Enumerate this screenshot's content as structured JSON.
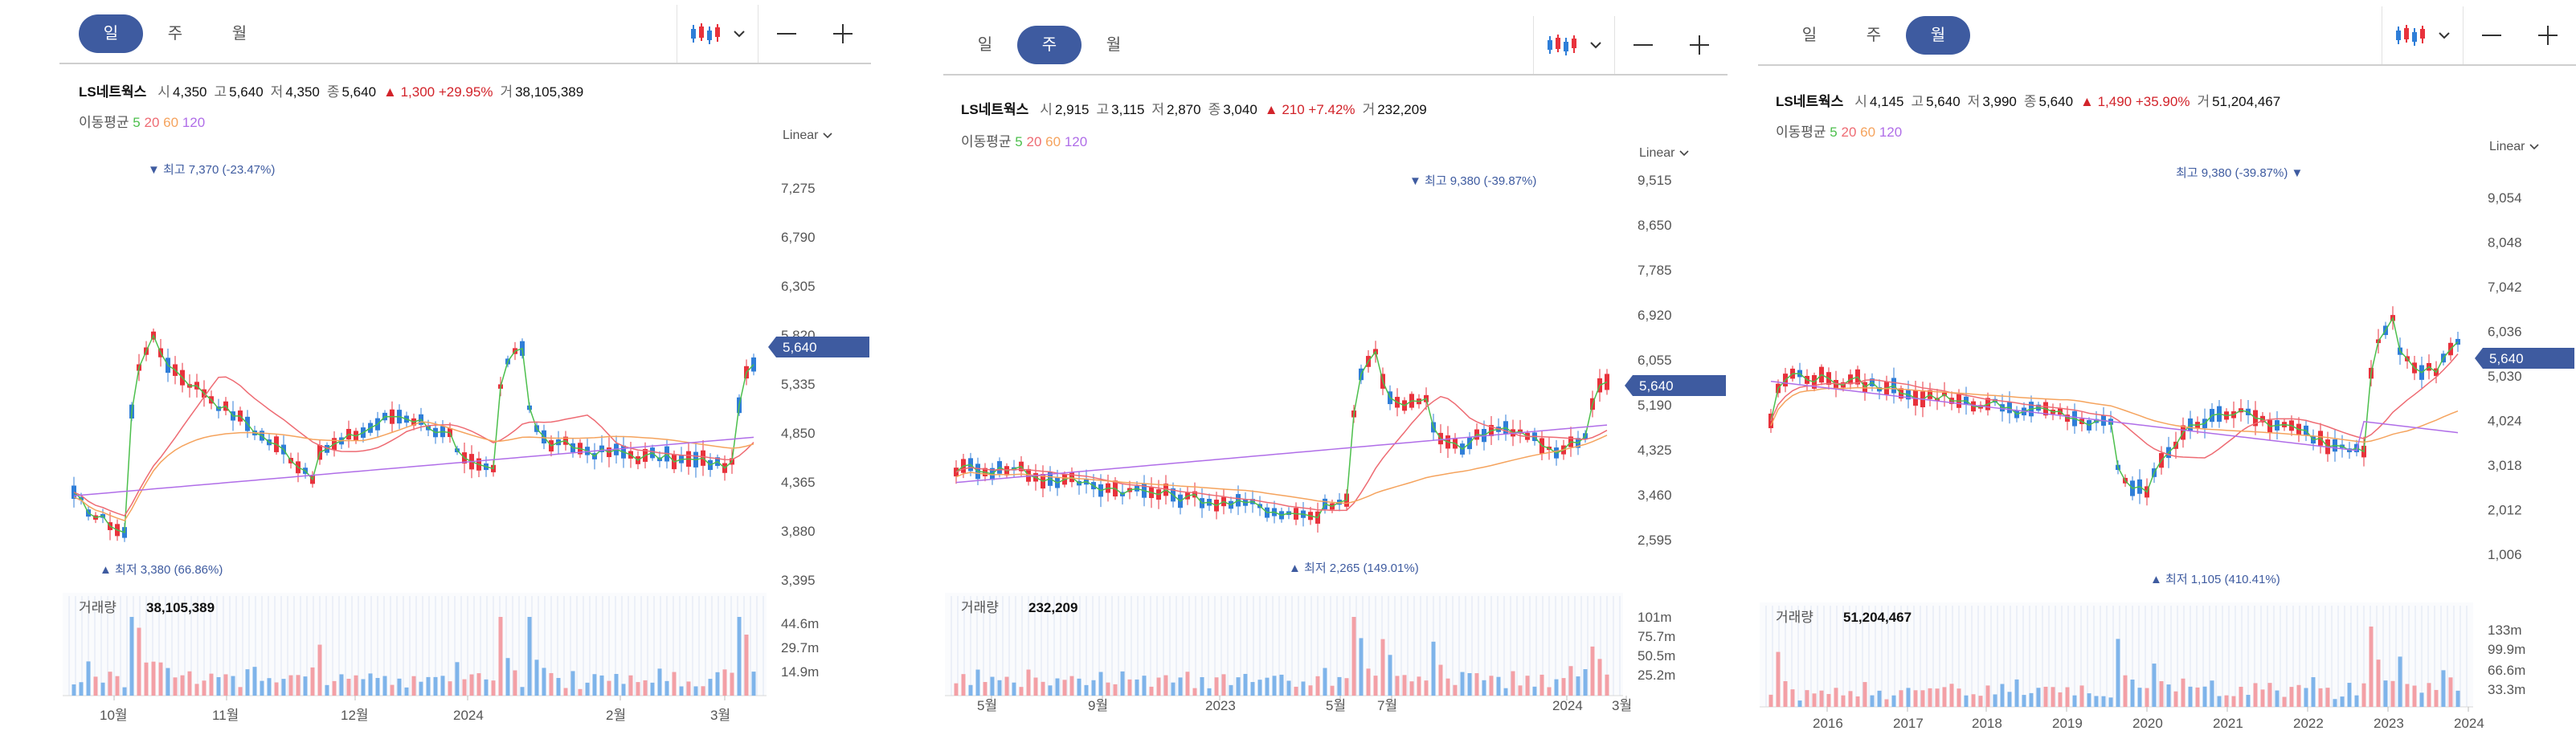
{
  "colors": {
    "up": "#e8323c",
    "down": "#2f7ed8",
    "accent": "#3e5ba0",
    "ma5": "#4cbf4c",
    "ma20": "#ee6b73",
    "ma60": "#f5a35d",
    "ma120": "#b06ee8",
    "vol_up": "#f3a0a6",
    "vol_down": "#7fb4ea"
  },
  "icons": {
    "chart_type": "candlestick-icon",
    "dropdown": "chevron-down-icon",
    "zoom_out": "minus-icon",
    "zoom_in": "plus-icon"
  },
  "panels": [
    {
      "periods": [
        "일",
        "주",
        "월"
      ],
      "active_period": 0,
      "stock": "LS네트웍스",
      "ohlc": [
        {
          "k": "시",
          "v": "4,350"
        },
        {
          "k": "고",
          "v": "5,640"
        },
        {
          "k": "저",
          "v": "4,350"
        },
        {
          "k": "종",
          "v": "5,640"
        }
      ],
      "change": "▲ 1,300 +29.95%",
      "volume_key": "거",
      "volume_value": "38,105,389",
      "ma_label": "이동평균",
      "ma_values": [
        "5",
        "20",
        "60",
        "120"
      ],
      "scale": "Linear",
      "y_ticks": [
        "7,275",
        "6,790",
        "6,305",
        "5,820",
        "5,335",
        "4,850",
        "4,365",
        "3,880",
        "3,395"
      ],
      "current_price": "5,640",
      "max_label": "▼ 최고 7,370 (-23.47%)",
      "min_label": "▲ 최저 3,380 (66.86%)",
      "vol_title": "거래량",
      "vol_value": "38,105,389",
      "vol_ticks": [
        "44.6m",
        "29.7m",
        "14.9m"
      ],
      "x_labels": [
        "10월",
        "11월",
        "12월",
        "2024",
        "2월",
        "3월"
      ]
    },
    {
      "periods": [
        "일",
        "주",
        "월"
      ],
      "active_period": 1,
      "stock": "LS네트웍스",
      "ohlc": [
        {
          "k": "시",
          "v": "2,915"
        },
        {
          "k": "고",
          "v": "3,115"
        },
        {
          "k": "저",
          "v": "2,870"
        },
        {
          "k": "종",
          "v": "3,040"
        }
      ],
      "change": "▲ 210 +7.42%",
      "volume_key": "거",
      "volume_value": "232,209",
      "ma_label": "이동평균",
      "ma_values": [
        "5",
        "20",
        "60",
        "120"
      ],
      "scale": "Linear",
      "y_ticks": [
        "9,515",
        "8,650",
        "7,785",
        "6,920",
        "6,055",
        "5,190",
        "4,325",
        "3,460",
        "2,595"
      ],
      "current_price": "5,640",
      "max_label": "▼ 최고 9,380 (-39.87%)",
      "min_label": "▲ 최저 2,265 (149.01%)",
      "vol_title": "거래량",
      "vol_value": "232,209",
      "vol_ticks": [
        "101m",
        "75.7m",
        "50.5m",
        "25.2m"
      ],
      "x_labels": [
        "5월",
        "9월",
        "2023",
        "5월",
        "7월",
        "2024",
        "3월"
      ]
    },
    {
      "periods": [
        "일",
        "주",
        "월"
      ],
      "active_period": 2,
      "stock": "LS네트웍스",
      "ohlc": [
        {
          "k": "시",
          "v": "4,145"
        },
        {
          "k": "고",
          "v": "5,640"
        },
        {
          "k": "저",
          "v": "3,990"
        },
        {
          "k": "종",
          "v": "5,640"
        }
      ],
      "change": "▲ 1,490 +35.90%",
      "volume_key": "거",
      "volume_value": "51,204,467",
      "ma_label": "이동평균",
      "ma_values": [
        "5",
        "20",
        "60",
        "120"
      ],
      "scale": "Linear",
      "y_ticks": [
        "9,054",
        "8,048",
        "7,042",
        "6,036",
        "5,030",
        "4,024",
        "3,018",
        "2,012",
        "1,006"
      ],
      "current_price": "5,640",
      "max_label": "최고 9,380 (-39.87%) ▼",
      "min_label": "▲ 최저 1,105 (410.41%)",
      "vol_title": "거래량",
      "vol_value": "51,204,467",
      "vol_ticks": [
        "133m",
        "99.9m",
        "66.6m",
        "33.3m"
      ],
      "x_labels": [
        "2016",
        "2017",
        "2018",
        "2019",
        "2020",
        "2021",
        "2022",
        "2023",
        "2024"
      ]
    }
  ]
}
